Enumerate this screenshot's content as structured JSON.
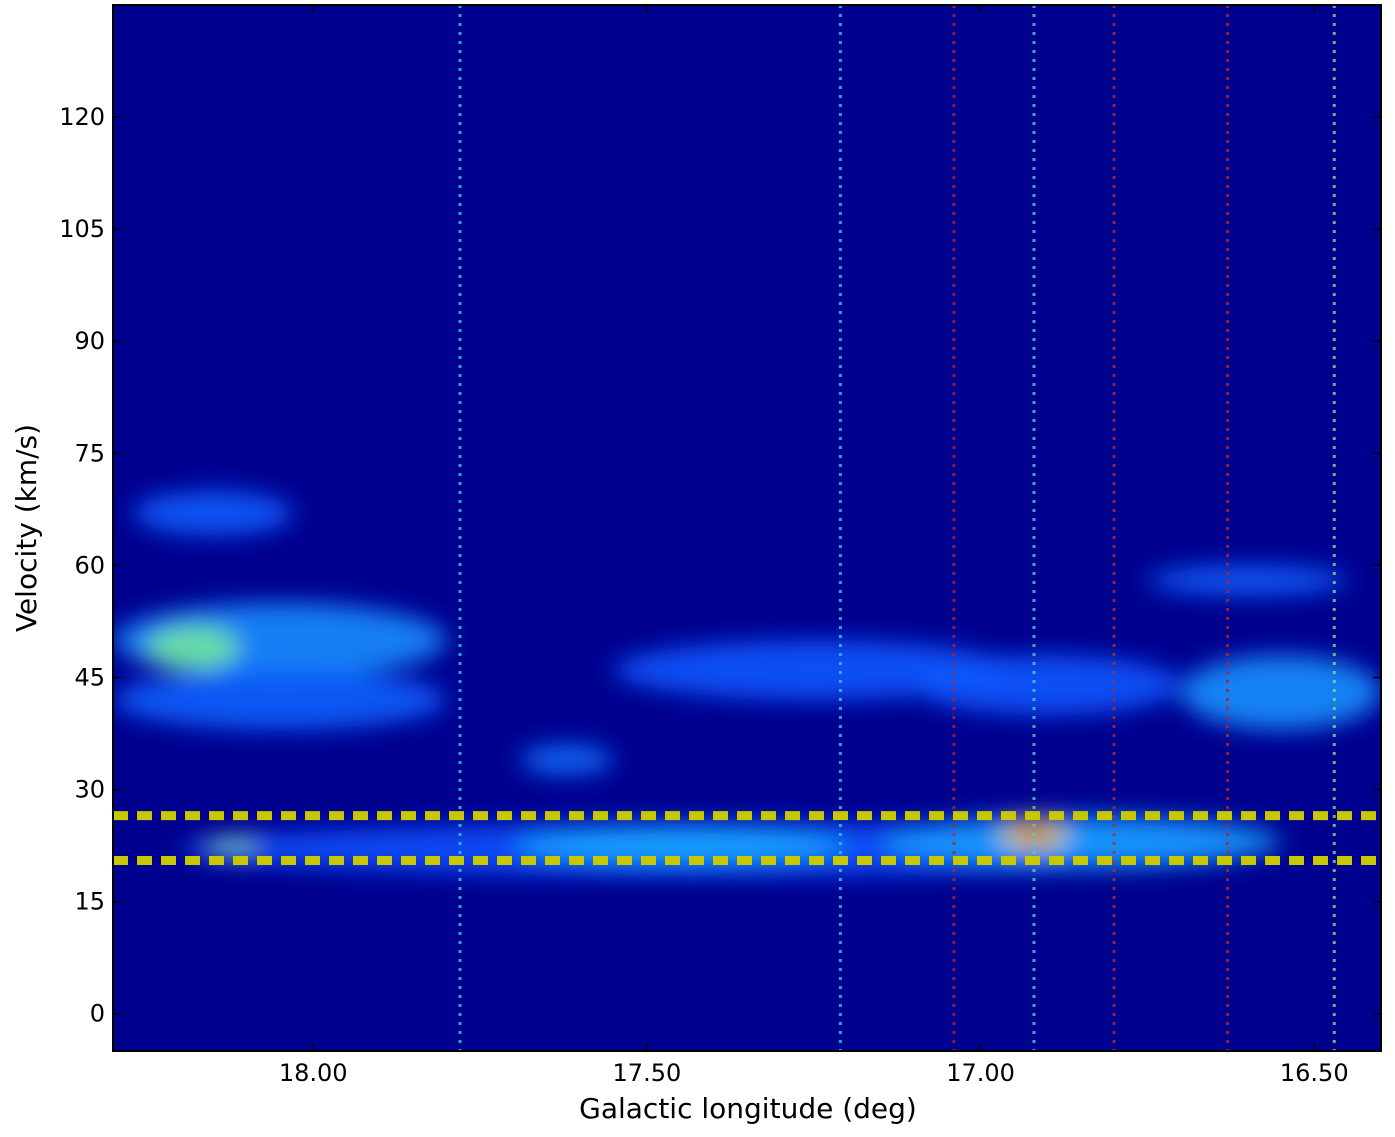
{
  "chart_data": {
    "type": "heatmap",
    "x_label": "Galactic longitude (deg)",
    "y_label": "Velocity (km/s)",
    "xlim": [
      18.3,
      16.4
    ],
    "ylim": [
      -5,
      135
    ],
    "xticks": [
      {
        "value": 18,
        "label": "18.00"
      },
      {
        "value": 17.5,
        "label": "17.50"
      },
      {
        "value": 17,
        "label": "17.00"
      },
      {
        "value": 16.5,
        "label": "16.50"
      }
    ],
    "yticks": [
      0,
      15,
      30,
      45,
      60,
      75,
      90,
      105,
      120
    ],
    "background": "#00008f",
    "emission": [
      {
        "x": 17.4,
        "y": 22,
        "dx": 0.8,
        "dy": 3.5,
        "color": "#0a52ff"
      },
      {
        "x": 16.85,
        "y": 23,
        "dx": 0.3,
        "dy": 3.5,
        "color": "#1a9cff"
      },
      {
        "x": 17.45,
        "y": 22.5,
        "dx": 0.25,
        "dy": 2.5,
        "color": "#18a8ff"
      },
      {
        "x": 18.05,
        "y": 50,
        "dx": 0.25,
        "dy": 5,
        "color": "#1a8cff"
      },
      {
        "x": 18.05,
        "y": 42,
        "dx": 0.25,
        "dy": 4,
        "color": "#0a60ff"
      },
      {
        "x": 18.15,
        "y": 67,
        "dx": 0.12,
        "dy": 3,
        "color": "#0a5cff"
      },
      {
        "x": 17.25,
        "y": 46,
        "dx": 0.3,
        "dy": 4,
        "color": "#0a58ff"
      },
      {
        "x": 16.9,
        "y": 44,
        "dx": 0.2,
        "dy": 4,
        "color": "#0a58ff"
      },
      {
        "x": 16.55,
        "y": 43,
        "dx": 0.15,
        "dy": 5,
        "color": "#1a90ff"
      },
      {
        "x": 16.6,
        "y": 58,
        "dx": 0.15,
        "dy": 2,
        "color": "#0a60ff"
      },
      {
        "x": 17.62,
        "y": 34,
        "dx": 0.07,
        "dy": 2,
        "color": "#0a70ff"
      },
      {
        "x": 18.18,
        "y": 49,
        "dx": 0.07,
        "dy": 3,
        "color": "#70e8a0"
      },
      {
        "x": 18.12,
        "y": 22.5,
        "dx": 0.04,
        "dy": 1,
        "color": "#90f0c0"
      },
      {
        "x": 16.92,
        "y": 24,
        "dx": 0.05,
        "dy": 2,
        "color": "#e8e030"
      },
      {
        "x": 16.92,
        "y": 24,
        "dx": 0.03,
        "dy": 1,
        "color": "#d00000"
      }
    ],
    "streaks": [
      {
        "x": 17.78,
        "color": "#30d0e0"
      },
      {
        "x": 17.21,
        "color": "#40c0f0"
      },
      {
        "x": 17.04,
        "color": "#c02020"
      },
      {
        "x": 16.92,
        "color": "#50d0c0"
      },
      {
        "x": 16.8,
        "color": "#b03020"
      },
      {
        "x": 16.63,
        "color": "#c02020"
      },
      {
        "x": 16.47,
        "color": "#80e080"
      }
    ],
    "hlines": [
      {
        "value": 26.5,
        "color": "#c8c800"
      },
      {
        "value": 20.5,
        "color": "#c8c800"
      }
    ]
  }
}
